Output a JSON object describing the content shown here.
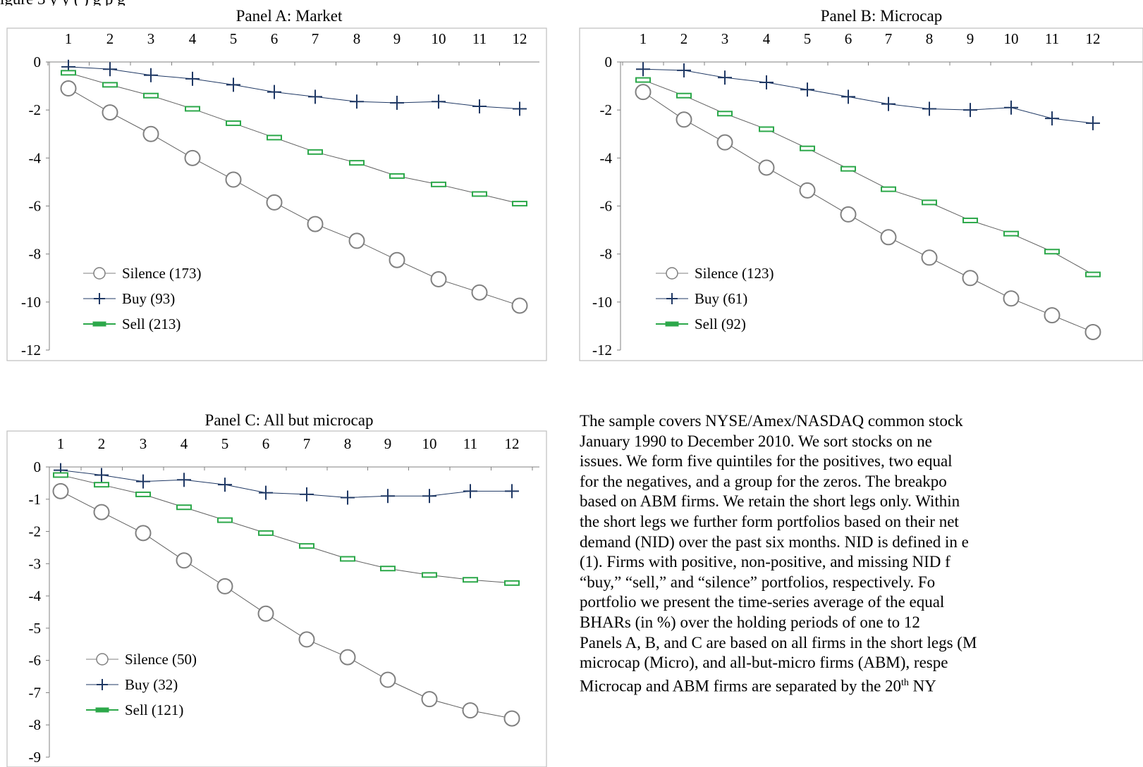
{
  "header_fragment": "igure 3 y  y  (    )      g p        g",
  "panels": [
    {
      "title": "Panel A: Market",
      "chart_data": {
        "type": "line",
        "x": [
          1,
          2,
          3,
          4,
          5,
          6,
          7,
          8,
          9,
          10,
          11,
          12
        ],
        "ylim": [
          -12,
          0
        ],
        "yticks": [
          0,
          -2,
          -4,
          -6,
          -8,
          -10,
          -12
        ],
        "x_axis_position": "top",
        "series": [
          {
            "name": "Silence (173)",
            "marker": "circle",
            "color": "#7f7f7f",
            "values": [
              -1.1,
              -2.1,
              -3.0,
              -4.0,
              -4.9,
              -5.85,
              -6.75,
              -7.45,
              -8.25,
              -9.05,
              -9.6,
              -10.15
            ]
          },
          {
            "name": "Buy (93)",
            "marker": "plus",
            "color": "#1f3864",
            "values": [
              -0.2,
              -0.3,
              -0.55,
              -0.7,
              -0.95,
              -1.25,
              -1.45,
              -1.65,
              -1.7,
              -1.65,
              -1.85,
              -1.95
            ]
          },
          {
            "name": "Sell (213)",
            "marker": "dash",
            "color": "#2ca84a",
            "values": [
              -0.45,
              -0.95,
              -1.4,
              -1.95,
              -2.55,
              -3.15,
              -3.75,
              -4.2,
              -4.75,
              -5.1,
              -5.5,
              -5.9
            ]
          }
        ]
      }
    },
    {
      "title": "Panel B: Microcap",
      "chart_data": {
        "type": "line",
        "x": [
          1,
          2,
          3,
          4,
          5,
          6,
          7,
          8,
          9,
          10,
          11,
          12
        ],
        "ylim": [
          -12,
          0
        ],
        "yticks": [
          0,
          -2,
          -4,
          -6,
          -8,
          -10,
          -12
        ],
        "x_axis_position": "top",
        "series": [
          {
            "name": "Silence (123)",
            "marker": "circle",
            "color": "#7f7f7f",
            "values": [
              -1.25,
              -2.4,
              -3.35,
              -4.4,
              -5.35,
              -6.35,
              -7.3,
              -8.15,
              -9.0,
              -9.85,
              -10.55,
              -11.25
            ]
          },
          {
            "name": "Buy (61)",
            "marker": "plus",
            "color": "#1f3864",
            "values": [
              -0.3,
              -0.35,
              -0.65,
              -0.85,
              -1.15,
              -1.45,
              -1.75,
              -1.95,
              -2.0,
              -1.9,
              -2.35,
              -2.55
            ]
          },
          {
            "name": "Sell (92)",
            "marker": "dash",
            "color": "#2ca84a",
            "values": [
              -0.75,
              -1.4,
              -2.15,
              -2.8,
              -3.6,
              -4.45,
              -5.3,
              -5.85,
              -6.6,
              -7.15,
              -7.9,
              -8.85
            ]
          }
        ]
      }
    },
    {
      "title": "Panel C: All but microcap",
      "chart_data": {
        "type": "line",
        "x": [
          1,
          2,
          3,
          4,
          5,
          6,
          7,
          8,
          9,
          10,
          11,
          12
        ],
        "ylim": [
          -9,
          0
        ],
        "yticks": [
          0,
          -1,
          -2,
          -3,
          -4,
          -5,
          -6,
          -7,
          -8,
          -9
        ],
        "x_axis_position": "top",
        "series": [
          {
            "name": "Silence (50)",
            "marker": "circle",
            "color": "#7f7f7f",
            "values": [
              -0.75,
              -1.4,
              -2.05,
              -2.9,
              -3.7,
              -4.55,
              -5.35,
              -5.9,
              -6.6,
              -7.2,
              -7.55,
              -7.8
            ]
          },
          {
            "name": "Buy (32)",
            "marker": "plus",
            "color": "#1f3864",
            "values": [
              -0.1,
              -0.25,
              -0.45,
              -0.4,
              -0.55,
              -0.8,
              -0.85,
              -0.95,
              -0.9,
              -0.9,
              -0.75,
              -0.75
            ]
          },
          {
            "name": "Sell (121)",
            "marker": "dash",
            "color": "#2ca84a",
            "values": [
              -0.25,
              -0.55,
              -0.85,
              -1.25,
              -1.65,
              -2.05,
              -2.45,
              -2.85,
              -3.15,
              -3.35,
              -3.5,
              -3.6
            ]
          }
        ]
      }
    }
  ],
  "description_lines": [
    "The sample covers NYSE/Amex/NASDAQ common stock",
    "January 1990 to December 2010. We sort stocks on ne",
    "issues. We form five quintiles for the positives, two equal",
    "for the negatives, and a group for the zeros. The breakpo",
    "based on ABM firms. We retain the short legs only. Within",
    "the short legs we further form portfolios based on their net",
    "demand (NID) over the past six months. NID is defined in e",
    "(1). Firms with positive, non-positive, and missing NID f",
    "“buy,” “sell,” and “silence” portfolios, respectively. Fo",
    "portfolio we present the time-series average of the equal",
    "BHARs (in %) over the holding periods of one to 12",
    "Panels A, B, and C are based on all firms in the short legs (M",
    "microcap (Micro), and all-but-micro firms (ABM), respe",
    "Microcap and ABM firms are separated by the 20"
  ],
  "description_sup": "th",
  "description_tail": " NY"
}
